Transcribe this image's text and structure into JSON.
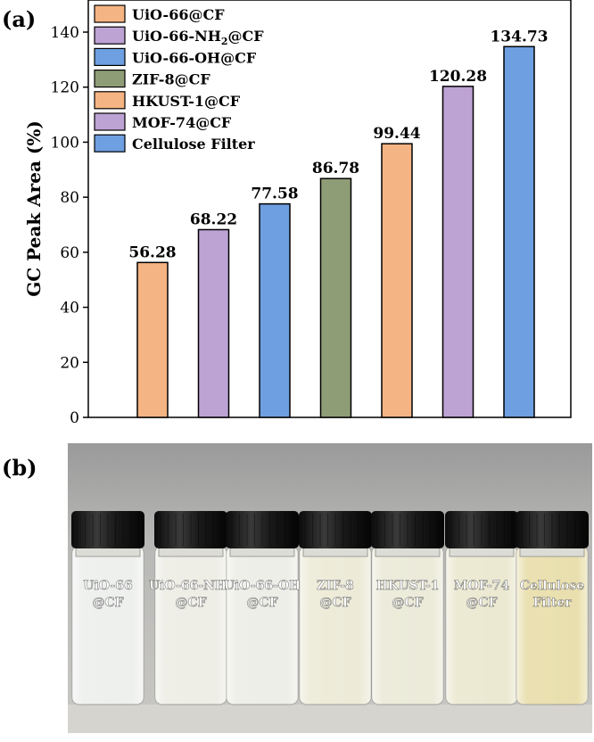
{
  "panel_labels": {
    "a": "(a)",
    "b": "(b)"
  },
  "colors": {
    "orange": "#F5B483",
    "purple": "#BDA2D4",
    "blue": "#6E9FE0",
    "green": "#8F9D77",
    "cream": "#F2E9C8"
  },
  "chart_data": {
    "type": "bar",
    "title": "",
    "xlabel": "",
    "ylabel": "GC Peak Area (%)",
    "ylim": [
      0,
      150
    ],
    "yticks": [
      0,
      20,
      40,
      60,
      80,
      100,
      120,
      140
    ],
    "grid": false,
    "legend_position": "top-left",
    "categories": [
      "UiO-66@CF",
      "UiO-66-NH2@CF",
      "UiO-66-OH@CF",
      "ZIF-8@CF",
      "HKUST-1@CF",
      "MOF-74@CF",
      "Cellulose Filter"
    ],
    "values": [
      56.28,
      68.22,
      77.58,
      86.78,
      99.44,
      120.28,
      134.73
    ],
    "value_labels": [
      "56.28",
      "68.22",
      "77.58",
      "86.78",
      "99.44",
      "120.28",
      "134.73"
    ],
    "bar_colors": [
      "#F5B483",
      "#BDA2D4",
      "#6E9FE0",
      "#8F9D77",
      "#F5B483",
      "#BDA2D4",
      "#6E9FE0"
    ],
    "legend": [
      {
        "label": "UiO-66@CF",
        "color": "#F5B483"
      },
      {
        "label": "UiO-66-NH",
        "sub": "2",
        "suffix": "@CF",
        "color": "#BDA2D4"
      },
      {
        "label": "UiO-66-OH@CF",
        "color": "#6E9FE0"
      },
      {
        "label": "ZIF-8@CF",
        "color": "#8F9D77"
      },
      {
        "label": "HKUST-1@CF",
        "color": "#F5B483"
      },
      {
        "label": "MOF-74@CF",
        "color": "#BDA2D4"
      },
      {
        "label": "Cellulose Filter",
        "color": "#6E9FE0"
      }
    ]
  },
  "vials": [
    {
      "line1": "UiO-66",
      "line1_sub": "",
      "line2": "@CF",
      "liquid": "#EEF0EE"
    },
    {
      "line1": "UiO-66-NH",
      "line1_sub": "2",
      "line2": "@CF",
      "liquid": "#EEEEE6"
    },
    {
      "line1": "UiO-66-OH",
      "line1_sub": "",
      "line2": "@CF",
      "liquid": "#EDEEE7"
    },
    {
      "line1": "ZIF-8",
      "line1_sub": "",
      "line2": "@CF",
      "liquid": "#EDEBD8"
    },
    {
      "line1": "HKUST-1",
      "line1_sub": "",
      "line2": "@CF",
      "liquid": "#ECEBDA"
    },
    {
      "line1": "MOF-74",
      "line1_sub": "",
      "line2": "@CF",
      "liquid": "#ECE9D2"
    },
    {
      "line1": "Cellulose",
      "line1_sub": "",
      "line2": "Filter",
      "liquid": "#E9DFAE"
    }
  ]
}
